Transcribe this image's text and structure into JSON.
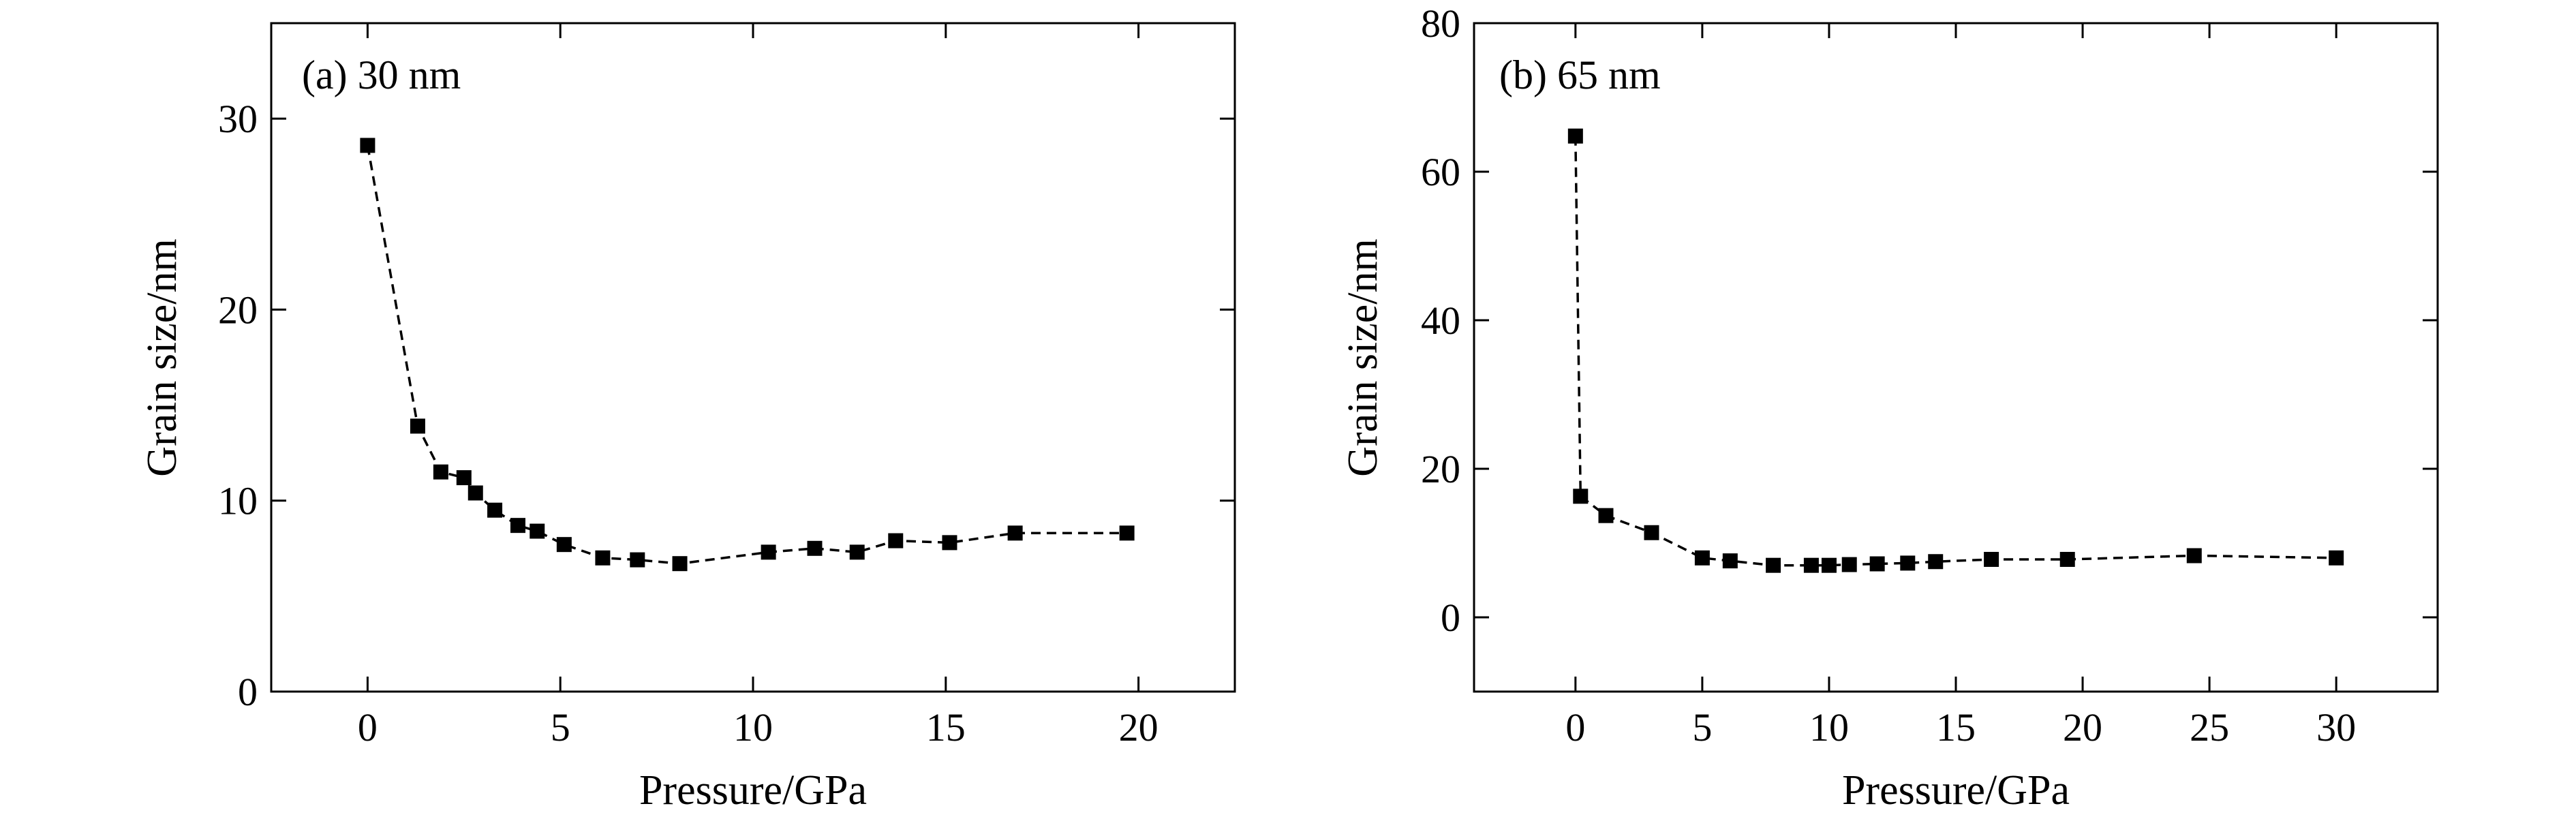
{
  "chart_data": [
    {
      "type": "scatter",
      "panel_label": "(a) 30 nm",
      "xlabel": "Pressure/GPa",
      "ylabel": "Grain size/nm",
      "xlim": [
        -2.5,
        22.5
      ],
      "ylim": [
        0,
        35
      ],
      "xticks": [
        0,
        5,
        10,
        15,
        20
      ],
      "yticks": [
        0,
        10,
        20,
        30
      ],
      "grid": false,
      "marker": "square",
      "line": "dashed",
      "color": "#000000",
      "series": [
        {
          "x": [
            0,
            1.3,
            1.9,
            2.5,
            2.8,
            3.3,
            3.9,
            4.4,
            5.1,
            6.1,
            7.0,
            8.1,
            10.4,
            11.6,
            12.7,
            13.7,
            15.1,
            16.8,
            19.7
          ],
          "y": [
            28.6,
            13.9,
            11.5,
            11.2,
            10.4,
            9.5,
            8.7,
            8.4,
            7.7,
            7.0,
            6.9,
            6.7,
            7.3,
            7.5,
            7.3,
            7.9,
            7.8,
            8.3,
            8.3
          ]
        }
      ]
    },
    {
      "type": "scatter",
      "panel_label": "(b) 65 nm",
      "xlabel": "Pressure/GPa",
      "ylabel": "Grain size/nm",
      "xlim": [
        -4,
        34
      ],
      "ylim": [
        -10,
        80
      ],
      "xticks": [
        0,
        5,
        10,
        15,
        20,
        25,
        30
      ],
      "yticks": [
        0,
        20,
        40,
        60,
        80
      ],
      "grid": false,
      "marker": "square",
      "line": "dashed",
      "color": "#000000",
      "series": [
        {
          "x": [
            0,
            0.2,
            1.2,
            3.0,
            5.0,
            6.1,
            7.8,
            9.3,
            10.0,
            10.8,
            11.9,
            13.1,
            14.2,
            16.4,
            19.4,
            24.4,
            30.0
          ],
          "y": [
            64.8,
            16.3,
            13.7,
            11.4,
            8.0,
            7.6,
            7.0,
            7.0,
            7.0,
            7.1,
            7.2,
            7.3,
            7.5,
            7.8,
            7.8,
            8.3,
            8.0
          ]
        }
      ]
    }
  ]
}
